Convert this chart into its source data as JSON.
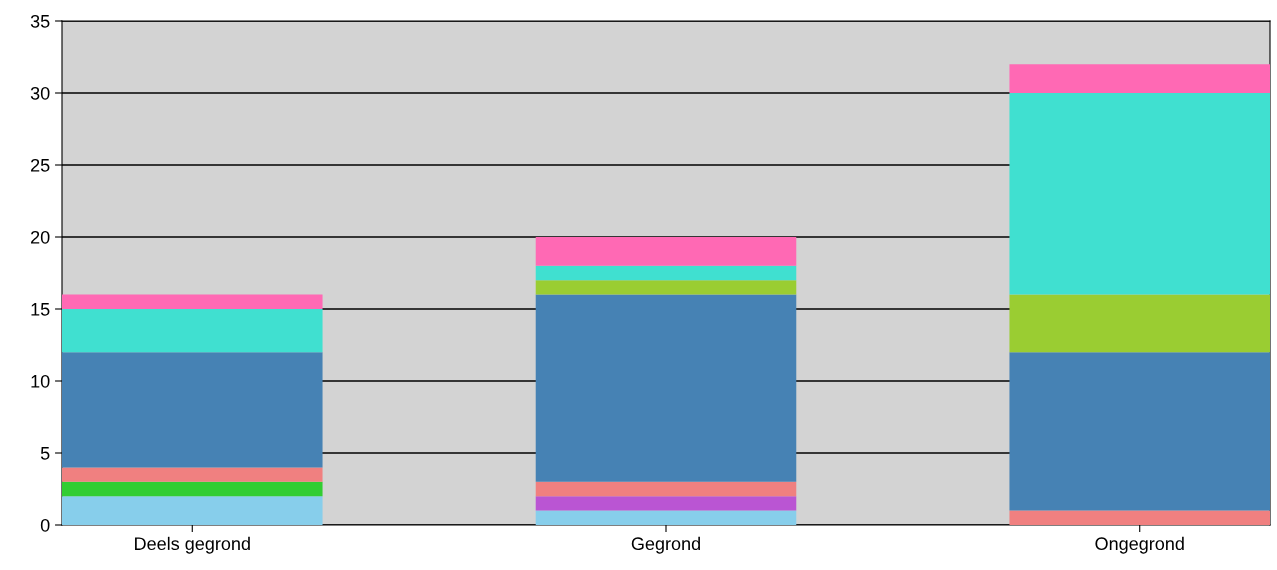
{
  "chart_data": {
    "type": "bar",
    "stacked": true,
    "categories": [
      "Deels gegrond",
      "Gegrond",
      "Ongegrond"
    ],
    "series": [
      {
        "color": "#87ceeb",
        "values": [
          2,
          1,
          0
        ]
      },
      {
        "color": "#32cd32",
        "values": [
          1,
          0,
          0
        ]
      },
      {
        "color": "#ba55d3",
        "values": [
          0,
          1,
          0
        ]
      },
      {
        "color": "#f08080",
        "values": [
          1,
          1,
          1
        ]
      },
      {
        "color": "#4682b4",
        "values": [
          8,
          13,
          11
        ]
      },
      {
        "color": "#9acd32",
        "values": [
          0,
          1,
          4
        ]
      },
      {
        "color": "#40e0d0",
        "values": [
          3,
          1,
          14
        ]
      },
      {
        "color": "#ff69b4",
        "values": [
          1,
          2,
          2
        ]
      }
    ],
    "ylim": [
      0,
      35
    ],
    "yticks": [
      0,
      5,
      10,
      15,
      20,
      25,
      30,
      35
    ],
    "grid": "y",
    "legend": false
  }
}
